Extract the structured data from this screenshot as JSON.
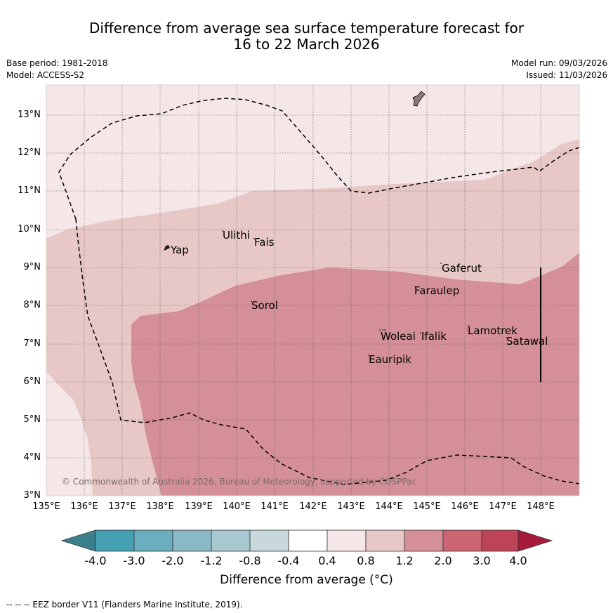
{
  "title": {
    "line1": "Difference from average sea surface temperature forecast for",
    "line2": "16 to 22 March 2026"
  },
  "meta": {
    "base_period": "Base period: 1981-2018",
    "model": "Model: ACCESS-S2",
    "model_run": "Model run: 09/03/2026",
    "issued": "Issued: 11/03/2026"
  },
  "map": {
    "lat_labels": [
      "13°N",
      "12°N",
      "11°N",
      "10°N",
      "9°N",
      "8°N",
      "7°N",
      "6°N",
      "5°N",
      "4°N",
      "3°N"
    ],
    "lon_labels": [
      "135°E",
      "136°E",
      "137°E",
      "138°E",
      "139°E",
      "140°E",
      "141°E",
      "142°E",
      "143°E",
      "144°E",
      "145°E",
      "146°E",
      "147°E",
      "148°E"
    ],
    "places": {
      "yap": "Yap",
      "ulithi": "Ulithi",
      "fais": "Fais",
      "sorol": "Sorol",
      "gaferut": "Gaferut",
      "faraulep": "Faraulep",
      "woleai": "Woleai",
      "ifalik": "Ifalik",
      "lamotrek": "Lamotrek",
      "satawal": "Satawal",
      "eauripik": "Eauripik"
    },
    "copyright": "© Commonwealth of Australia 2026, Bureau of Meteorology, supported by COSPPac",
    "colors": {
      "band_0_4_0_8": "#f5e7e7",
      "band_0_8_1_2": "#e8c8c6",
      "band_1_2_2_0": "#d48f97",
      "eez_line": "#000000",
      "land": "#8a7a7a"
    }
  },
  "colorbar": {
    "ticks": [
      "-4.0",
      "-3.0",
      "-2.0",
      "-1.2",
      "-0.8",
      "-0.4",
      "0.4",
      "0.8",
      "1.2",
      "2.0",
      "3.0",
      "4.0"
    ],
    "colors": [
      "#3b7f8c",
      "#45a0b3",
      "#6aafbf",
      "#8bb8c6",
      "#a8c8d0",
      "#c8d9dd",
      "#ffffff",
      "#f5e7e7",
      "#e8c8c6",
      "#d48f97",
      "#cc6573",
      "#bd4356",
      "#a61b3c"
    ],
    "label": "Difference from average (°C)"
  },
  "footnote": "--  --  -- EEZ border V11 (Flanders Marine Institute, 2019)."
}
